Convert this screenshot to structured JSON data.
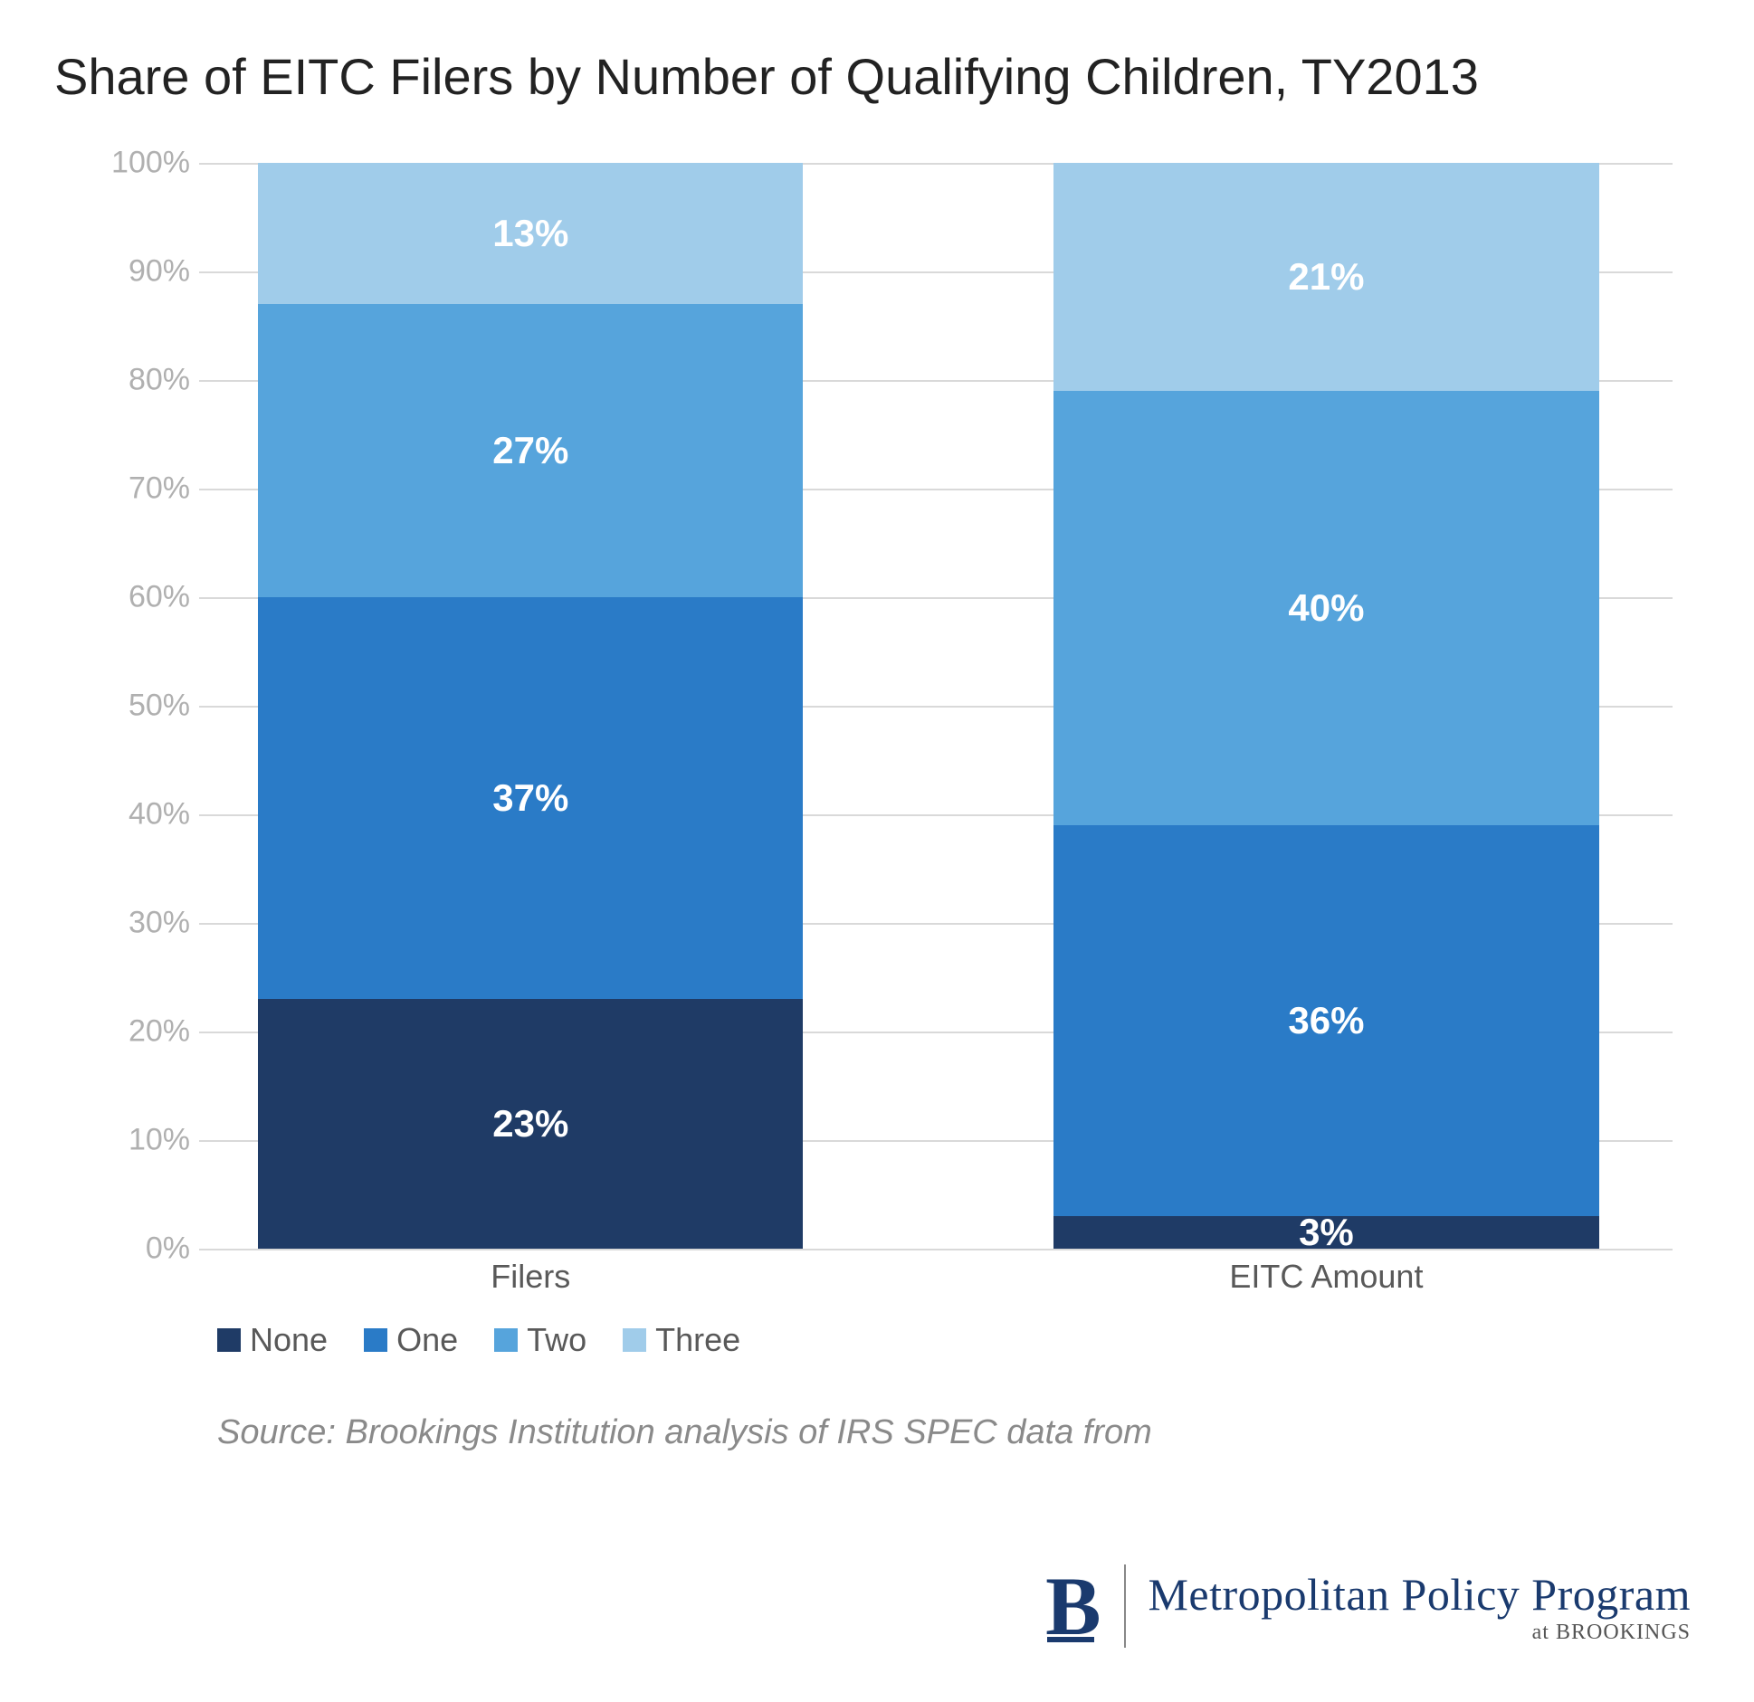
{
  "title": "Share of EITC Filers by Number of Qualifying Children, TY2013",
  "chart": {
    "type": "stacked-bar-100",
    "ylim": [
      0,
      100
    ],
    "ytick_step": 10,
    "ytick_suffix": "%",
    "grid_color": "#d9d9d9",
    "ylabel_color": "#b0b0b0",
    "xlabel_color": "#595959",
    "data_label_color": "#ffffff",
    "data_label_fontsize": 42,
    "axis_fontsize": 34,
    "categories": [
      "Filers",
      "EITC Amount"
    ],
    "series": [
      {
        "name": "None",
        "color": "#1f3b66",
        "values": [
          23,
          3
        ]
      },
      {
        "name": "One",
        "color": "#2a7bc7",
        "values": [
          37,
          36
        ]
      },
      {
        "name": "Two",
        "color": "#56a4dc",
        "values": [
          27,
          40
        ]
      },
      {
        "name": "Three",
        "color": "#a0ccea",
        "values": [
          13,
          21
        ]
      }
    ],
    "bar_width_pct": 37,
    "bar_positions_pct": [
      4,
      58
    ]
  },
  "legend_fontsize": 36,
  "source": "Source: Brookings Institution analysis of IRS SPEC data from",
  "brand": {
    "letter": "B",
    "program": "Metropolitan Policy Program",
    "sub": "at BROOKINGS",
    "color": "#1a3a6e"
  }
}
